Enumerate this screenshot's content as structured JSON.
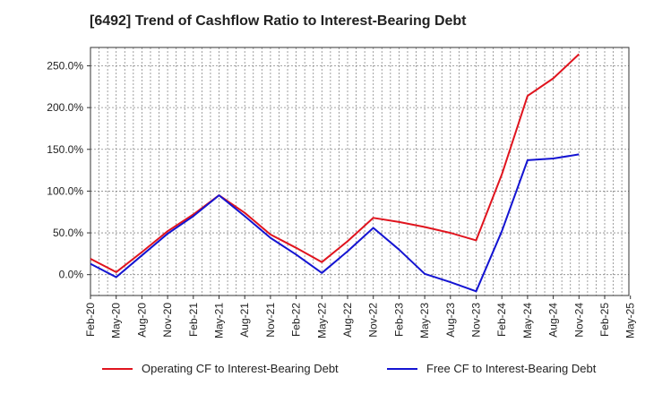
{
  "chart_data": {
    "type": "line",
    "title": "[6492]  Trend of Cashflow Ratio to Interest-Bearing Debt",
    "xlabel": "",
    "ylabel": "",
    "x_ticks": [
      "Feb-20",
      "May-20",
      "Aug-20",
      "Nov-20",
      "Feb-21",
      "May-21",
      "Aug-21",
      "Nov-21",
      "Feb-22",
      "May-22",
      "Aug-22",
      "Nov-22",
      "Feb-23",
      "May-23",
      "Aug-23",
      "Nov-23",
      "Feb-24",
      "May-24",
      "Aug-24",
      "Nov-24",
      "Feb-25",
      "May-25"
    ],
    "y_ticks": [
      "0.0%",
      "50.0%",
      "100.0%",
      "150.0%",
      "200.0%",
      "250.0%"
    ],
    "ylim": [
      -25,
      272
    ],
    "grid": true,
    "legend_position": "bottom",
    "series": [
      {
        "name": "Operating CF to Interest-Bearing Debt",
        "color": "#e0141e",
        "values": [
          19,
          3,
          27,
          52,
          72,
          95,
          74,
          48,
          32,
          15,
          40,
          68,
          63,
          57,
          50,
          41,
          120,
          214,
          235,
          264,
          null,
          null
        ]
      },
      {
        "name": "Free CF to Interest-Bearing Debt",
        "color": "#1414d2",
        "values": [
          13,
          -3,
          23,
          49,
          70,
          95,
          70,
          44,
          24,
          2,
          28,
          56,
          30,
          1,
          -9,
          -20,
          52,
          137,
          139,
          144,
          null,
          null
        ]
      }
    ]
  }
}
